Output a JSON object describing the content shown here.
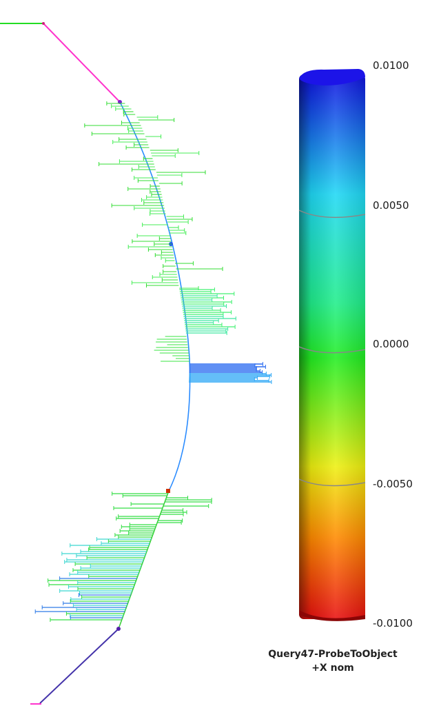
{
  "colorbar": {
    "ticks": [
      "0.0100",
      "0.0050",
      "0.0000",
      "-0.0050",
      "-0.0100"
    ],
    "colors": [
      "#1a10e0",
      "#23ddf0",
      "#1fee1f",
      "#f2f209",
      "#ee0f0f"
    ]
  },
  "caption": {
    "line1": "Query47-ProbeToObject",
    "line2": "+X nom"
  },
  "profile_colors": {
    "top_lead": "#22dd22",
    "top_segment": "#ff33cc",
    "arc": "#2b8cff",
    "lower_segment": "#4433aa",
    "marker_red": "#cc3300"
  }
}
